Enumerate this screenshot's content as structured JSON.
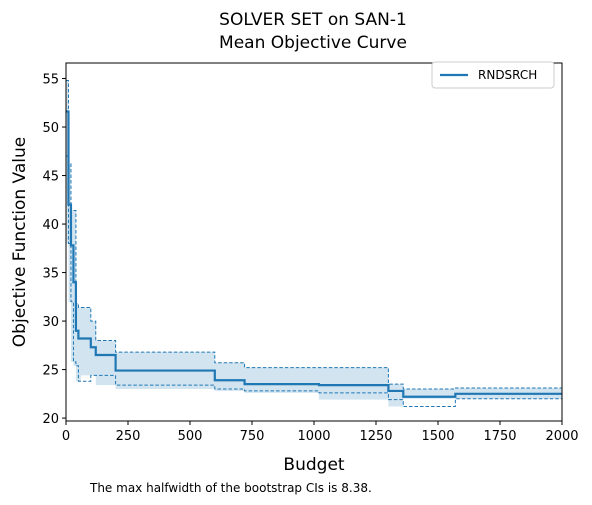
{
  "chart_data": {
    "type": "line",
    "title": "SOLVER SET on SAN-1",
    "subtitle": "Mean Objective Curve",
    "xlabel": "Budget",
    "ylabel": "Objective Function Value",
    "xlim": [
      0,
      2000
    ],
    "ylim": [
      19.7,
      56.6
    ],
    "xticks": [
      "0",
      "250",
      "500",
      "750",
      "1000",
      "1250",
      "1500",
      "1750",
      "2000"
    ],
    "yticks": [
      "20",
      "25",
      "30",
      "35",
      "40",
      "45",
      "50",
      "55"
    ],
    "grid": false,
    "legend_position": "top-right",
    "series": [
      {
        "name": "RNDSRCH",
        "color": "#1f77b4",
        "x": [
          0,
          10,
          20,
          30,
          40,
          50,
          60,
          100,
          120,
          200,
          600,
          720,
          1020,
          1300,
          1360,
          1570,
          2000
        ],
        "y": [
          51.6,
          42.0,
          37.8,
          34.0,
          29.0,
          28.2,
          28.2,
          27.3,
          26.5,
          24.9,
          23.9,
          23.5,
          23.4,
          22.8,
          22.2,
          22.5,
          22.5
        ],
        "lower": [
          47.0,
          38.0,
          32.0,
          25.8,
          25.4,
          23.8,
          23.8,
          24.4,
          24.4,
          23.4,
          23.0,
          22.8,
          22.6,
          21.9,
          21.2,
          22.0,
          22.0
        ],
        "upper": [
          54.8,
          46.2,
          41.4,
          41.4,
          31.8,
          31.4,
          31.4,
          30.0,
          28.0,
          26.8,
          25.7,
          25.2,
          25.2,
          23.5,
          23.0,
          23.1,
          23.1
        ]
      }
    ]
  },
  "caption": "The max halfwidth of the bootstrap CIs is 8.38."
}
